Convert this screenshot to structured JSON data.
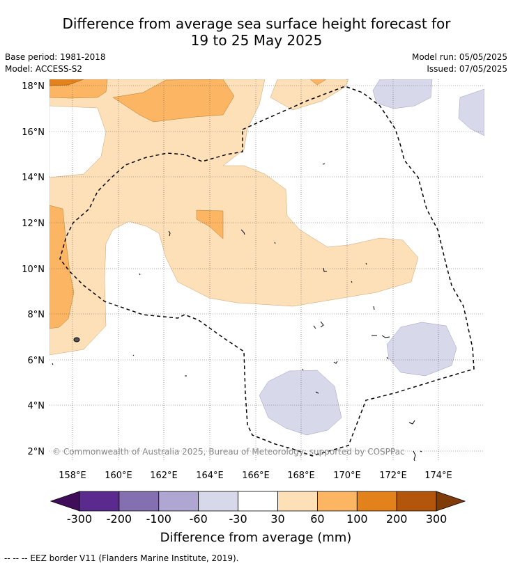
{
  "header": {
    "title_line1": "Difference from average sea surface height forecast for",
    "title_line2": "19 to 25 May 2025",
    "base_period": "Base period: 1981-2018",
    "model": "Model: ACCESS-S2",
    "model_run": "Model run: 05/05/2025",
    "issued": "Issued: 07/05/2025"
  },
  "map": {
    "lat_labels": [
      "18°N",
      "16°N",
      "14°N",
      "12°N",
      "10°N",
      "8°N",
      "6°N",
      "4°N",
      "2°N"
    ],
    "lon_labels": [
      "158°E",
      "160°E",
      "162°E",
      "164°E",
      "166°E",
      "168°E",
      "170°E",
      "172°E",
      "174°E"
    ],
    "copyright": "© Commonwealth of Australia 2025, Bureau of Meteorology; supported by COSPPac"
  },
  "colorbar": {
    "ticks": [
      "-300",
      "-200",
      "-100",
      "-60",
      "-30",
      "30",
      "60",
      "100",
      "200",
      "300"
    ],
    "colors": [
      "#3f0d59",
      "#5a2a8e",
      "#8470b1",
      "#afa6d2",
      "#d8d8eb",
      "#ffffff",
      "#fde0b7",
      "#fbb563",
      "#e3811a",
      "#b3560b",
      "#7f3b08"
    ],
    "label": "Difference from average (mm)"
  },
  "footnote": "--  --  -- EEZ border V11 (Flanders Marine Institute, 2019)."
}
